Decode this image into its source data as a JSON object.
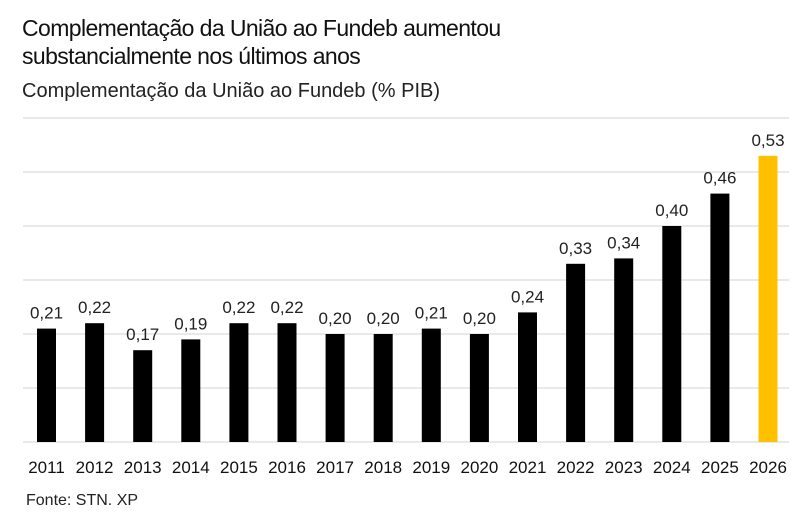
{
  "header": {
    "title": "Complementação da União ao Fundeb aumentou substancialmente nos últimos anos",
    "subtitle": "Complementação da União ao Fundeb (% PIB)"
  },
  "footer": {
    "source": "Fonte: STN. XP"
  },
  "colors": {
    "bar": "#000000",
    "highlight": "#FFC000",
    "grid": "#e9e9e9"
  },
  "chart_data": {
    "type": "bar",
    "title": "Complementação da União ao Fundeb aumentou substancialmente nos últimos anos",
    "subtitle": "Complementação da União ao Fundeb (% PIB)",
    "xlabel": "",
    "ylabel": "% PIB",
    "categories": [
      "2011",
      "2012",
      "2013",
      "2014",
      "2015",
      "2016",
      "2017",
      "2018",
      "2019",
      "2020",
      "2021",
      "2022",
      "2023",
      "2024",
      "2025",
      "2026"
    ],
    "values": [
      0.21,
      0.22,
      0.17,
      0.19,
      0.22,
      0.22,
      0.2,
      0.2,
      0.21,
      0.2,
      0.24,
      0.33,
      0.34,
      0.4,
      0.46,
      0.53
    ],
    "data_labels": [
      "0,21",
      "0,22",
      "0,17",
      "0,19",
      "0,22",
      "0,22",
      "0,20",
      "0,20",
      "0,21",
      "0,20",
      "0,24",
      "0,33",
      "0,34",
      "0,40",
      "0,46",
      "0,53"
    ],
    "highlight_index": 15,
    "ylim": [
      0,
      0.6
    ],
    "y_grid_step": 0.1,
    "grid": true,
    "y_tick_labels_visible": false,
    "legend": "none"
  }
}
